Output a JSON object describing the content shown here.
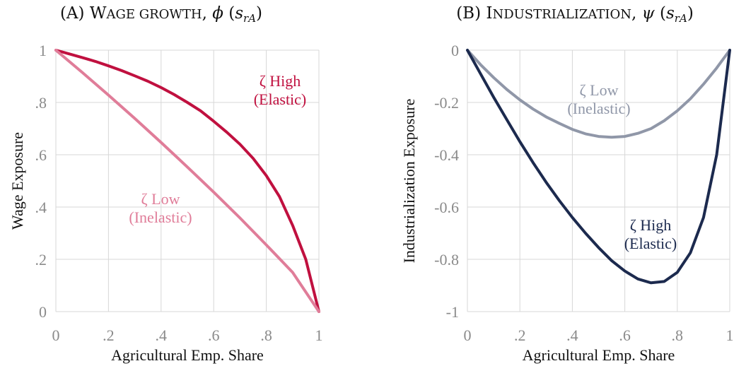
{
  "chart_data": [
    {
      "type": "line",
      "title": "(A) Wage Growth, ϕ (s_rA)",
      "title_parts": {
        "prefix": "(A) ",
        "smallcaps": "Wage Growth",
        "sep": ", ",
        "fn": "ϕ",
        "arg_open": " (",
        "arg_s": "s",
        "arg_sub": "rA",
        "arg_close": ")"
      },
      "xlabel": "Agricultural Emp. Share",
      "ylabel": "Wage Exposure",
      "xlim": [
        0,
        1
      ],
      "ylim": [
        0,
        1
      ],
      "xticks": [
        0,
        0.2,
        0.4,
        0.6,
        0.8,
        1
      ],
      "xtick_labels": [
        "0",
        ".2",
        ".4",
        ".6",
        ".8",
        "1"
      ],
      "yticks": [
        0,
        0.2,
        0.4,
        0.6,
        0.8,
        1
      ],
      "ytick_labels": [
        "0",
        ".2",
        ".4",
        ".6",
        ".8",
        "1"
      ],
      "grid": true,
      "series": [
        {
          "name": "ζ High (Elastic)",
          "label_lines": [
            "ζ High",
            "(Elastic)"
          ],
          "color": "#c0103f",
          "x": [
            0,
            0.05,
            0.1,
            0.15,
            0.2,
            0.25,
            0.3,
            0.35,
            0.4,
            0.45,
            0.5,
            0.55,
            0.6,
            0.65,
            0.7,
            0.75,
            0.8,
            0.85,
            0.9,
            0.95,
            1
          ],
          "y": [
            1,
            0.986,
            0.972,
            0.957,
            0.94,
            0.922,
            0.902,
            0.881,
            0.857,
            0.83,
            0.8,
            0.768,
            0.728,
            0.686,
            0.64,
            0.586,
            0.52,
            0.44,
            0.33,
            0.2,
            0
          ]
        },
        {
          "name": "ζ Low (Inelastic)",
          "label_lines": [
            "ζ Low",
            "(Inelastic)"
          ],
          "color": "#e07d99",
          "x": [
            0,
            0.1,
            0.2,
            0.3,
            0.4,
            0.5,
            0.6,
            0.7,
            0.8,
            0.9,
            1
          ],
          "y": [
            1,
            0.915,
            0.828,
            0.739,
            0.647,
            0.553,
            0.457,
            0.358,
            0.255,
            0.15,
            0
          ]
        }
      ]
    },
    {
      "type": "line",
      "title": "(B) Industrialization, ψ (s_rA)",
      "title_parts": {
        "prefix": "(B) ",
        "smallcaps": "Industrialization",
        "sep": ", ",
        "fn": "ψ",
        "arg_open": " (",
        "arg_s": "s",
        "arg_sub": "rA",
        "arg_close": ")"
      },
      "xlabel": "Agricultural Emp. Share",
      "ylabel": "Industrialization Exposure",
      "xlim": [
        0,
        1
      ],
      "ylim": [
        -1,
        0
      ],
      "xticks": [
        0,
        0.2,
        0.4,
        0.6,
        0.8,
        1
      ],
      "xtick_labels": [
        "0",
        ".2",
        ".4",
        ".6",
        ".8",
        "1"
      ],
      "yticks": [
        -1,
        -0.8,
        -0.6,
        -0.4,
        -0.2,
        0
      ],
      "ytick_labels": [
        "-1",
        "-0.8",
        "-0.6",
        "-0.4",
        "-0.2",
        "0"
      ],
      "grid": true,
      "series": [
        {
          "name": "ζ Low (Inelastic)",
          "label_lines": [
            "ζ Low",
            "(Inelastic)"
          ],
          "color": "#9097a8",
          "x": [
            0,
            0.05,
            0.1,
            0.15,
            0.2,
            0.25,
            0.3,
            0.35,
            0.4,
            0.45,
            0.5,
            0.55,
            0.6,
            0.65,
            0.7,
            0.75,
            0.8,
            0.85,
            0.9,
            0.95,
            1
          ],
          "y": [
            0,
            -0.055,
            -0.105,
            -0.15,
            -0.19,
            -0.225,
            -0.255,
            -0.28,
            -0.303,
            -0.32,
            -0.33,
            -0.333,
            -0.33,
            -0.318,
            -0.3,
            -0.27,
            -0.232,
            -0.186,
            -0.13,
            -0.068,
            0
          ]
        },
        {
          "name": "ζ High (Elastic)",
          "label_lines": [
            "ζ High",
            "(Elastic)"
          ],
          "color": "#1c2a4e",
          "x": [
            0,
            0.05,
            0.1,
            0.15,
            0.2,
            0.25,
            0.3,
            0.35,
            0.4,
            0.45,
            0.5,
            0.55,
            0.6,
            0.65,
            0.7,
            0.75,
            0.8,
            0.85,
            0.9,
            0.95,
            1
          ],
          "y": [
            0,
            -0.09,
            -0.18,
            -0.265,
            -0.35,
            -0.43,
            -0.505,
            -0.575,
            -0.64,
            -0.7,
            -0.755,
            -0.805,
            -0.845,
            -0.875,
            -0.89,
            -0.885,
            -0.85,
            -0.775,
            -0.64,
            -0.4,
            0
          ]
        }
      ]
    }
  ]
}
